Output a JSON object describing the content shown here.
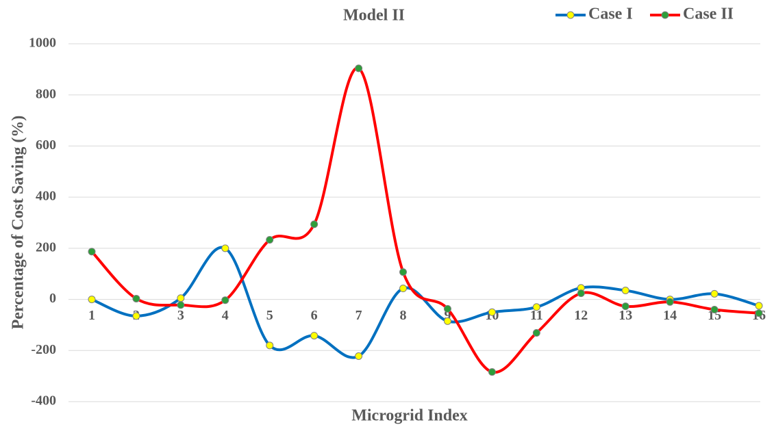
{
  "chart_data": {
    "type": "line",
    "title": "Model II",
    "x_label": "Microgrid Index",
    "y_label": "Percentage of Cost Saving (%)",
    "categories": [
      "1",
      "2",
      "3",
      "4",
      "5",
      "6",
      "7",
      "8",
      "9",
      "10",
      "11",
      "12",
      "13",
      "14",
      "15",
      "16"
    ],
    "series": [
      {
        "name": "Case I",
        "color": "#0070c0",
        "marker_color": "#ffff00",
        "values": [
          0,
          -65,
          5,
          200,
          -180,
          -142,
          -222,
          43,
          -85,
          -50,
          -30,
          45,
          35,
          0,
          22,
          -25
        ]
      },
      {
        "name": "Case II",
        "color": "#ff0000",
        "marker_color": "#2e9e3a",
        "values": [
          187,
          3,
          -22,
          -3,
          233,
          294,
          904,
          107,
          -37,
          -284,
          -131,
          24,
          -27,
          -10,
          -40,
          -54
        ]
      }
    ],
    "ylim": [
      -400,
      1000
    ],
    "yticks": [
      -400,
      -200,
      0,
      200,
      400,
      600,
      800,
      1000
    ],
    "grid": true,
    "legend": "top-right",
    "smooth": true
  }
}
